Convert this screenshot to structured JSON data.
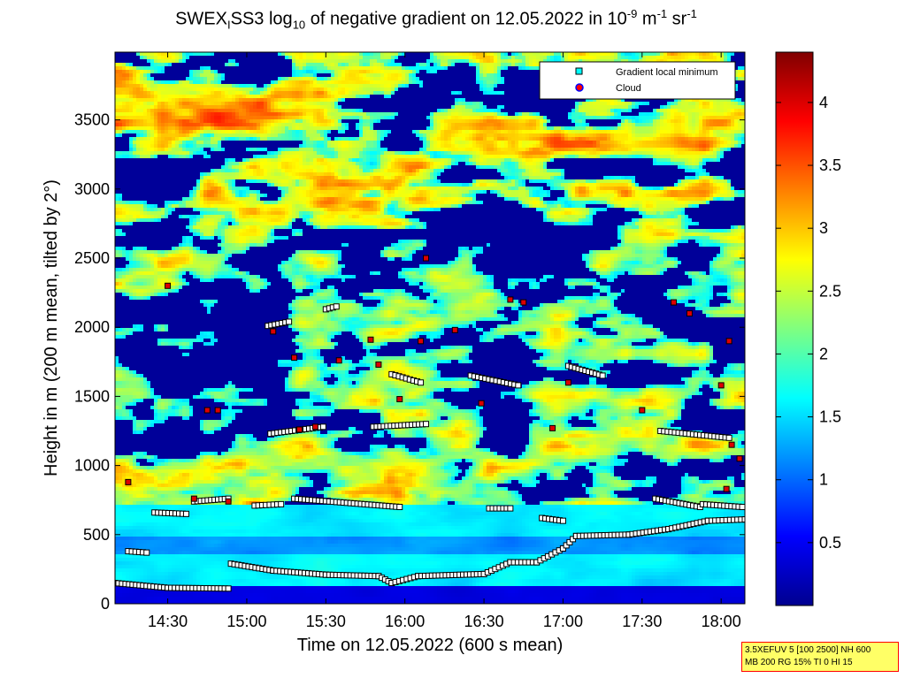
{
  "chart_data": {
    "type": "heatmap",
    "title": {
      "prefix": "SWEX",
      "sub1": "I",
      "mid": "SS3 log",
      "sub2": "10",
      "rest": " of negative gradient on 12.05.2022 in 10",
      "sup1": "-9",
      "unit1": " m",
      "sup2": "-1",
      "unit2": " sr",
      "sup3": "-1"
    },
    "xlabel": "Time on 12.05.2022 (600 s mean)",
    "ylabel": "Height in m (200 m mean, tilted by 2°)",
    "x_tick_labels": [
      "14:30",
      "15:00",
      "15:30",
      "16:00",
      "16:30",
      "17:00",
      "17:30",
      "18:00"
    ],
    "x_tick_minutes": [
      870,
      900,
      930,
      960,
      990,
      1020,
      1050,
      1080
    ],
    "x_range_minutes": [
      850,
      1089
    ],
    "y_ticks": [
      0,
      500,
      1000,
      1500,
      2000,
      2500,
      3000,
      3500
    ],
    "y_range": [
      0,
      3990
    ],
    "colorbar": {
      "ticks": [
        "0.5",
        "1",
        "1.5",
        "2",
        "2.5",
        "3",
        "3.5",
        "4"
      ],
      "tick_values": [
        0.5,
        1,
        1.5,
        2,
        2.5,
        3,
        3.5,
        4
      ],
      "range": [
        0,
        4.4
      ]
    },
    "legend": {
      "position": "top-right",
      "entries": [
        {
          "label": "Gradient local minimum",
          "marker": "square",
          "color": "#00ffff"
        },
        {
          "label": "Cloud",
          "marker": "circle",
          "color": "#ff0000"
        }
      ]
    },
    "series": [
      {
        "name": "Gradient local minimum",
        "layers": [
          {
            "x": [
              850,
              870,
              893
            ],
            "y": [
              150,
              115,
              110
            ]
          },
          {
            "x": [
              894,
              910,
              930,
              950,
              955,
              965,
              990,
              1000,
              1010,
              1020,
              1025,
              1045,
              1060,
              1075,
              1089
            ],
            "y": [
              290,
              240,
              210,
              200,
              150,
              200,
              215,
              300,
              300,
              400,
              490,
              500,
              540,
              600,
              610
            ]
          },
          {
            "x": [
              855,
              862
            ],
            "y": [
              380,
              370
            ]
          },
          {
            "x": [
              865,
              877
            ],
            "y": [
              660,
              650
            ]
          },
          {
            "x": [
              880,
              893
            ],
            "y": [
              740,
              760
            ]
          },
          {
            "x": [
              903,
              913
            ],
            "y": [
              710,
              720
            ]
          },
          {
            "x": [
              918,
              958
            ],
            "y": [
              760,
              700
            ]
          },
          {
            "x": [
              992,
              1000
            ],
            "y": [
              690,
              690
            ]
          },
          {
            "x": [
              1012,
              1020
            ],
            "y": [
              620,
              600
            ]
          },
          {
            "x": [
              1055,
              1072
            ],
            "y": [
              760,
              700
            ]
          },
          {
            "x": [
              1073,
              1088
            ],
            "y": [
              720,
              700
            ]
          },
          {
            "x": [
              909,
              929
            ],
            "y": [
              1230,
              1280
            ]
          },
          {
            "x": [
              948,
              968
            ],
            "y": [
              1280,
              1300
            ]
          },
          {
            "x": [
              1057,
              1083
            ],
            "y": [
              1250,
              1200
            ]
          },
          {
            "x": [
              908,
              916
            ],
            "y": [
              2010,
              2040
            ]
          },
          {
            "x": [
              930,
              934
            ],
            "y": [
              2130,
              2150
            ]
          },
          {
            "x": [
              955,
              966
            ],
            "y": [
              1660,
              1600
            ]
          },
          {
            "x": [
              985,
              1003
            ],
            "y": [
              1650,
              1580
            ]
          },
          {
            "x": [
              1022,
              1035
            ],
            "y": [
              1720,
              1650
            ]
          }
        ]
      },
      {
        "name": "Cloud",
        "points": [
          [
            870,
            2300
          ],
          [
            885,
            1400
          ],
          [
            880,
            760
          ],
          [
            893,
            740
          ],
          [
            910,
            1970
          ],
          [
            918,
            1780
          ],
          [
            920,
            1260
          ],
          [
            935,
            1760
          ],
          [
            947,
            1910
          ],
          [
            950,
            1730
          ],
          [
            958,
            1480
          ],
          [
            966,
            1900
          ],
          [
            968,
            2500
          ],
          [
            979,
            1980
          ],
          [
            989,
            1450
          ],
          [
            1000,
            2200
          ],
          [
            1005,
            2180
          ],
          [
            1016,
            1270
          ],
          [
            1022,
            1600
          ],
          [
            1050,
            1400
          ],
          [
            1062,
            2180
          ],
          [
            1068,
            2100
          ],
          [
            1080,
            1580
          ],
          [
            1083,
            1900
          ],
          [
            1087,
            1050
          ],
          [
            1084,
            1150
          ],
          [
            1082,
            830
          ],
          [
            855,
            880
          ],
          [
            889,
            1400
          ],
          [
            926,
            1280
          ]
        ]
      }
    ]
  },
  "info_box": {
    "line1": "3.5XEFUV 5 [100 2500] NH 600",
    "line2": "MB 200 RG 15% TI 0 HI 15"
  }
}
